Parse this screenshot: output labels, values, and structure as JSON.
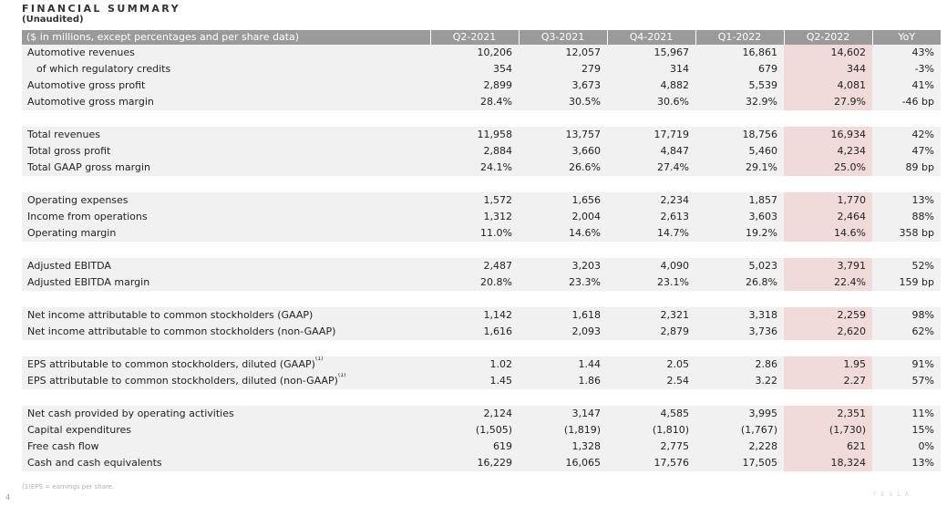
{
  "header": {
    "title": "FINANCIAL SUMMARY",
    "subtitle": "(Unaudited)"
  },
  "table": {
    "columns": [
      "($ in millions, except percentages and per share data)",
      "Q2-2021",
      "Q3-2021",
      "Q4-2021",
      "Q1-2022",
      "Q2-2022",
      "YoY"
    ],
    "sections": [
      {
        "rows": [
          {
            "label": "Automotive revenues",
            "values": [
              "10,206",
              "12,057",
              "15,967",
              "16,861",
              "14,602",
              "43%"
            ]
          },
          {
            "label": "of which regulatory credits",
            "indent": true,
            "values": [
              "354",
              "279",
              "314",
              "679",
              "344",
              "-3%"
            ]
          },
          {
            "label": "Automotive gross profit",
            "values": [
              "2,899",
              "3,673",
              "4,882",
              "5,539",
              "4,081",
              "41%"
            ]
          },
          {
            "label": "Automotive gross margin",
            "values": [
              "28.4%",
              "30.5%",
              "30.6%",
              "32.9%",
              "27.9%",
              "-46 bp"
            ]
          }
        ]
      },
      {
        "rows": [
          {
            "label": "Total revenues",
            "values": [
              "11,958",
              "13,757",
              "17,719",
              "18,756",
              "16,934",
              "42%"
            ]
          },
          {
            "label": "Total gross profit",
            "values": [
              "2,884",
              "3,660",
              "4,847",
              "5,460",
              "4,234",
              "47%"
            ]
          },
          {
            "label": "Total GAAP gross margin",
            "values": [
              "24.1%",
              "26.6%",
              "27.4%",
              "29.1%",
              "25.0%",
              "89 bp"
            ]
          }
        ]
      },
      {
        "rows": [
          {
            "label": "Operating expenses",
            "values": [
              "1,572",
              "1,656",
              "2,234",
              "1,857",
              "1,770",
              "13%"
            ]
          },
          {
            "label": "Income from operations",
            "values": [
              "1,312",
              "2,004",
              "2,613",
              "3,603",
              "2,464",
              "88%"
            ]
          },
          {
            "label": "Operating margin",
            "values": [
              "11.0%",
              "14.6%",
              "14.7%",
              "19.2%",
              "14.6%",
              "358 bp"
            ]
          }
        ]
      },
      {
        "rows": [
          {
            "label": "Adjusted EBITDA",
            "values": [
              "2,487",
              "3,203",
              "4,090",
              "5,023",
              "3,791",
              "52%"
            ]
          },
          {
            "label": "Adjusted EBITDA margin",
            "values": [
              "20.8%",
              "23.3%",
              "23.1%",
              "26.8%",
              "22.4%",
              "159 bp"
            ]
          }
        ]
      },
      {
        "rows": [
          {
            "label": "Net income attributable to common stockholders (GAAP)",
            "values": [
              "1,142",
              "1,618",
              "2,321",
              "3,318",
              "2,259",
              "98%"
            ]
          },
          {
            "label": "Net income attributable to common stockholders (non-GAAP)",
            "values": [
              "1,616",
              "2,093",
              "2,879",
              "3,736",
              "2,620",
              "62%"
            ]
          }
        ]
      },
      {
        "rows": [
          {
            "label": "EPS attributable to common stockholders, diluted (GAAP)",
            "sup": "(1)",
            "values": [
              "1.02",
              "1.44",
              "2.05",
              "2.86",
              "1.95",
              "91%"
            ]
          },
          {
            "label": "EPS attributable to common stockholders, diluted (non-GAAP)",
            "sup": "(1)",
            "values": [
              "1.45",
              "1.86",
              "2.54",
              "3.22",
              "2.27",
              "57%"
            ]
          }
        ]
      },
      {
        "rows": [
          {
            "label": "Net cash provided by operating activities",
            "values": [
              "2,124",
              "3,147",
              "4,585",
              "3,995",
              "2,351",
              "11%"
            ]
          },
          {
            "label": "Capital expenditures",
            "values": [
              "(1,505)",
              "(1,819)",
              "(1,810)",
              "(1,767)",
              "(1,730)",
              "15%"
            ]
          },
          {
            "label": "Free cash flow",
            "values": [
              "619",
              "1,328",
              "2,775",
              "2,228",
              "621",
              "0%"
            ]
          },
          {
            "label": "Cash and cash equivalents",
            "values": [
              "16,229",
              "16,065",
              "17,576",
              "17,505",
              "18,324",
              "13%"
            ]
          }
        ]
      }
    ]
  },
  "footnote": "(1)EPS = earnings per share.",
  "page_number": "4",
  "logo": "TESLA",
  "colors": {
    "header_bg": "#9a9a9a",
    "row_bg": "#f1f1f1",
    "highlight_bg": "#f0dada"
  }
}
